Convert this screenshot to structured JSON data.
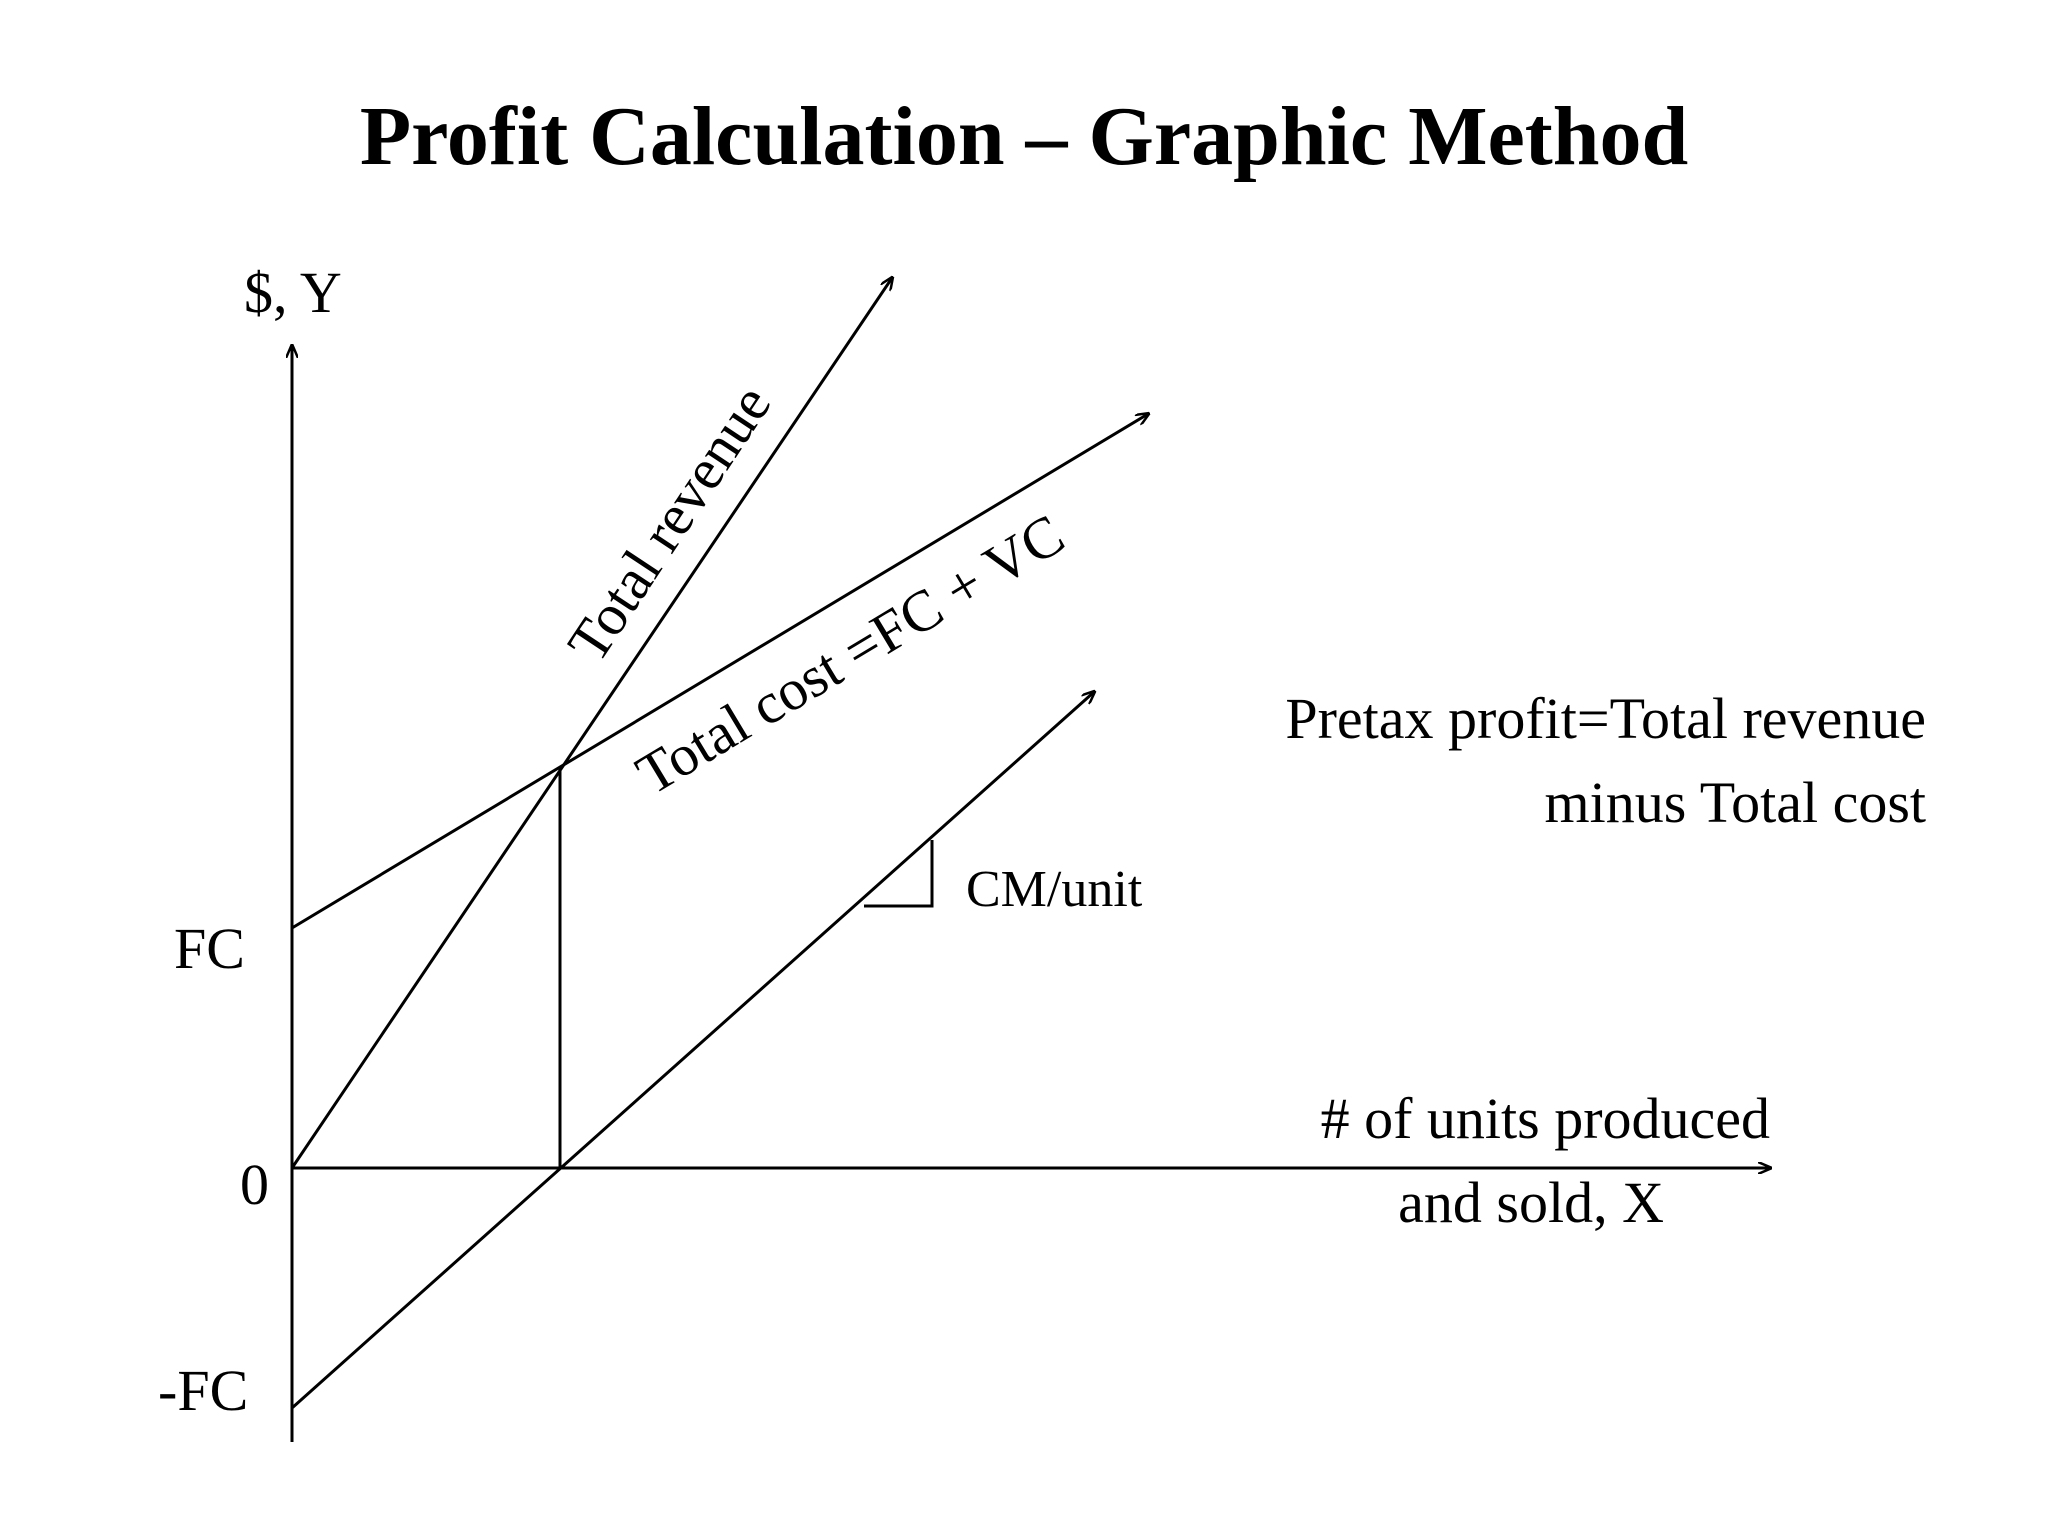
{
  "title": "Profit Calculation – Graphic Method",
  "axes": {
    "y_label": "$, Y",
    "x_label_line1": "# of units produced",
    "x_label_line2": "and sold, X",
    "fc_label": "FC",
    "zero_label": "0",
    "neg_fc_label": "-FC"
  },
  "lines": {
    "total_revenue": "Total revenue",
    "total_cost": "Total cost =FC + VC"
  },
  "annotations": {
    "cm_unit": "CM/unit",
    "profit_line1": "Pretax profit=Total revenue",
    "profit_line2": "minus Total cost"
  }
}
